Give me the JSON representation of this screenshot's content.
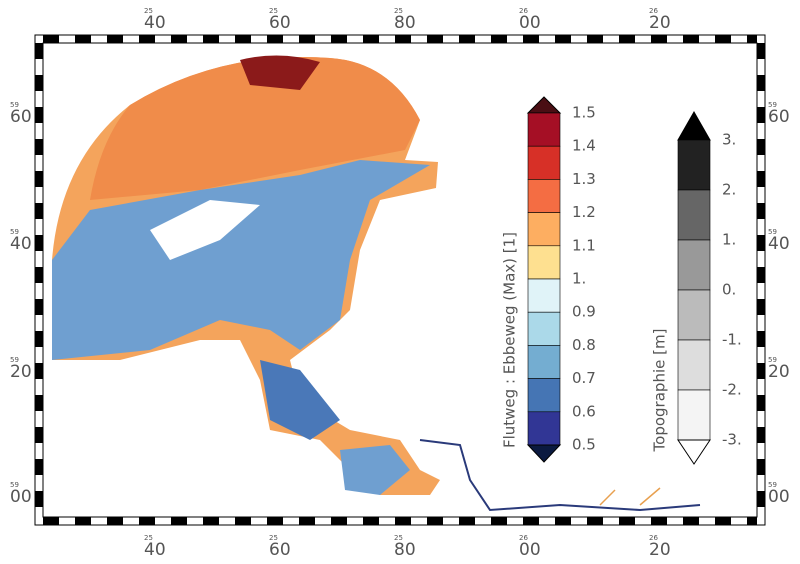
{
  "map": {
    "x_labels": [
      {
        "minor": "25",
        "major": "40"
      },
      {
        "minor": "25",
        "major": "60"
      },
      {
        "minor": "25",
        "major": "80"
      },
      {
        "minor": "26",
        "major": "00"
      },
      {
        "minor": "26",
        "major": "20"
      }
    ],
    "y_labels": [
      {
        "minor": "59",
        "major": "60"
      },
      {
        "minor": "59",
        "major": "40"
      },
      {
        "minor": "59",
        "major": "20"
      },
      {
        "minor": "59",
        "major": "00"
      }
    ]
  },
  "colorbar_ratio": {
    "title": "Flutweg : Ebbeweg (Max) [1]",
    "labels": [
      "1.5",
      "1.4",
      "1.3",
      "1.2",
      "1.1",
      "1.",
      "0.9",
      "0.8",
      "0.7",
      "0.6",
      "0.5"
    ],
    "over_color": "#4a0e14",
    "under_color": "#0b1a40",
    "colors": [
      "#a50f25",
      "#d73027",
      "#f46d43",
      "#fdae61",
      "#fee090",
      "#e0f3f8",
      "#abd9e9",
      "#74add1",
      "#4575b4",
      "#313695"
    ]
  },
  "colorbar_topo": {
    "title": "Topographie [m]",
    "labels": [
      "3.",
      "2.",
      "1.",
      "0.",
      "-1.",
      "-2.",
      "-3."
    ],
    "over_color": "#000000",
    "under_color": "#ffffff",
    "colors": [
      "#222222",
      "#666666",
      "#999999",
      "#bbbbbb",
      "#dddddd",
      "#f4f4f4"
    ]
  }
}
